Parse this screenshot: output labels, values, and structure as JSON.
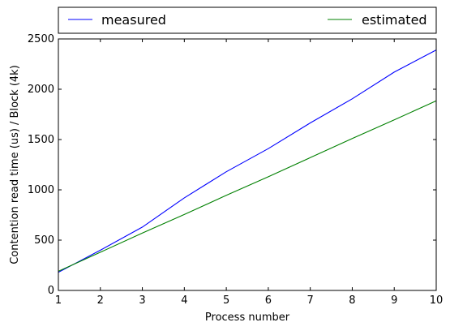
{
  "chart_data": {
    "type": "line",
    "xlabel": "Process number",
    "ylabel": "Contention read time (us) / Block (4k)",
    "xlim": [
      1,
      10
    ],
    "ylim": [
      0,
      2500
    ],
    "xticks": [
      "1",
      "2",
      "3",
      "4",
      "5",
      "6",
      "7",
      "8",
      "9",
      "10"
    ],
    "yticks": [
      "0",
      "500",
      "1000",
      "1500",
      "2000",
      "2500"
    ],
    "grid": false,
    "legend_position": "top, above plot",
    "x": [
      1,
      2,
      3,
      4,
      5,
      6,
      7,
      8,
      9,
      10
    ],
    "series": [
      {
        "name": "measured",
        "color": "#0000ff",
        "values": [
          180,
          400,
          630,
          920,
          1180,
          1410,
          1665,
          1905,
          2170,
          2390
        ]
      },
      {
        "name": "estimated",
        "color": "#008000",
        "values": [
          190,
          380,
          570,
          755,
          945,
          1130,
          1320,
          1510,
          1695,
          1885
        ]
      }
    ]
  }
}
